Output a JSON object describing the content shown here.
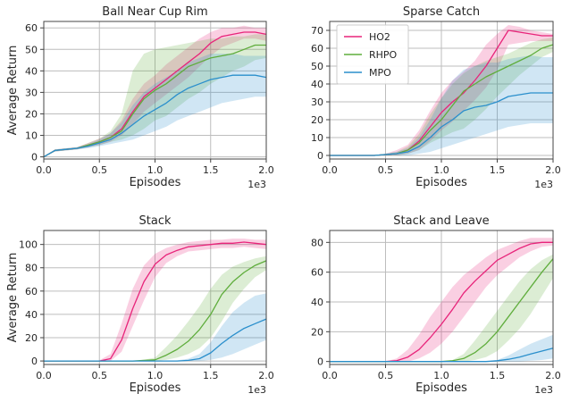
{
  "chart_data": [
    {
      "type": "line",
      "title": "Ball Near Cup Rim",
      "xlabel": "Episodes",
      "ylabel": "Average Return",
      "x_offset_label": "1e3",
      "xlim": [
        0,
        2.0
      ],
      "ylim": [
        -1,
        63
      ],
      "x_ticks": [
        0.0,
        0.5,
        1.0,
        1.5,
        2.0
      ],
      "x_tick_labels": [
        "0.0",
        "0.5",
        "1.0",
        "1.5",
        "2.0"
      ],
      "y_ticks": [
        0,
        10,
        20,
        30,
        40,
        50,
        60
      ],
      "y_tick_labels": [
        "0",
        "10",
        "20",
        "30",
        "40",
        "50",
        "60"
      ],
      "grid": true,
      "x": [
        0,
        0.1,
        0.2,
        0.3,
        0.4,
        0.5,
        0.6,
        0.7,
        0.8,
        0.9,
        1.0,
        1.1,
        1.2,
        1.3,
        1.4,
        1.5,
        1.6,
        1.7,
        1.8,
        1.9,
        2.0
      ],
      "series": [
        {
          "name": "HO2",
          "color": "#e8247a",
          "values": [
            0,
            3,
            3.5,
            4,
            5.5,
            7,
            9,
            13,
            21,
            28,
            32,
            36,
            40,
            44,
            48,
            53,
            56,
            57,
            58,
            58,
            57
          ],
          "upper": [
            0,
            3.5,
            4,
            4.5,
            6.5,
            8.5,
            11,
            17,
            27,
            34,
            38,
            43,
            47,
            51,
            55,
            58,
            60,
            60,
            61,
            60,
            60
          ],
          "lower": [
            0,
            2.5,
            3,
            3.5,
            4.5,
            5.5,
            7,
            10,
            15,
            21,
            25,
            29,
            33,
            37,
            42,
            47,
            51,
            53,
            55,
            55,
            54
          ]
        },
        {
          "name": "RHPO",
          "color": "#5fad3c",
          "values": [
            0,
            3,
            3.5,
            4,
            5.5,
            7,
            9,
            12,
            20,
            27,
            31,
            34,
            38,
            42,
            44,
            46,
            47,
            48,
            50,
            52,
            52
          ],
          "upper": [
            0,
            3.5,
            4,
            4.5,
            6.5,
            8.5,
            12,
            20,
            40,
            48,
            50,
            51,
            52,
            53,
            54,
            55,
            55,
            56,
            56,
            57,
            57
          ],
          "lower": [
            0,
            2.5,
            3,
            3.5,
            4.5,
            5.5,
            7,
            8,
            10,
            13,
            17,
            19,
            23,
            27,
            30,
            34,
            37,
            40,
            42,
            45,
            46
          ]
        },
        {
          "name": "MPO",
          "color": "#2a8fcc",
          "values": [
            0,
            3,
            3.5,
            4,
            5,
            6.5,
            8,
            11,
            15,
            19,
            22,
            25,
            29,
            32,
            34,
            36,
            37,
            38,
            38,
            38,
            37
          ],
          "upper": [
            0,
            3.5,
            4,
            4.5,
            6,
            8,
            11,
            16,
            24,
            30,
            34,
            37,
            40,
            44,
            46,
            48,
            48,
            48,
            47,
            47,
            47
          ],
          "lower": [
            0,
            2.5,
            3,
            3.5,
            4,
            5,
            6,
            7,
            8,
            10,
            12,
            14,
            17,
            19,
            21,
            23,
            25,
            26,
            27,
            28,
            28
          ]
        }
      ]
    },
    {
      "type": "line",
      "title": "Sparse Catch",
      "xlabel": "Episodes",
      "ylabel": "",
      "x_offset_label": "1e3",
      "xlim": [
        0,
        2.0
      ],
      "ylim": [
        -2,
        75
      ],
      "x_ticks": [
        0.0,
        0.5,
        1.0,
        1.5,
        2.0
      ],
      "x_tick_labels": [
        "0.0",
        "0.5",
        "1.0",
        "1.5",
        "2.0"
      ],
      "y_ticks": [
        0,
        10,
        20,
        30,
        40,
        50,
        60,
        70
      ],
      "y_tick_labels": [
        "0",
        "10",
        "20",
        "30",
        "40",
        "50",
        "60",
        "70"
      ],
      "grid": true,
      "legend": {
        "placement": "top-left",
        "entries": [
          "HO2",
          "RHPO",
          "MPO"
        ]
      },
      "x": [
        0,
        0.1,
        0.2,
        0.3,
        0.4,
        0.5,
        0.6,
        0.7,
        0.8,
        0.9,
        1.0,
        1.1,
        1.2,
        1.3,
        1.4,
        1.5,
        1.6,
        1.7,
        1.8,
        1.9,
        2.0
      ],
      "series": [
        {
          "name": "HO2",
          "color": "#e8247a",
          "values": [
            0,
            0,
            0,
            0,
            0,
            0.5,
            1,
            3,
            8,
            16,
            24,
            30,
            35,
            42,
            50,
            60,
            70,
            69,
            68,
            67,
            67
          ],
          "upper": [
            0,
            0,
            0,
            0,
            0,
            1,
            3,
            6,
            14,
            25,
            35,
            42,
            47,
            53,
            62,
            68,
            73,
            72,
            70,
            69,
            68
          ],
          "lower": [
            0,
            0,
            0,
            0,
            0,
            0,
            0,
            1,
            3,
            8,
            14,
            19,
            25,
            31,
            38,
            48,
            62,
            63,
            64,
            64,
            64
          ]
        },
        {
          "name": "RHPO",
          "color": "#5fad3c",
          "values": [
            0,
            0,
            0,
            0,
            0,
            0.5,
            1,
            3,
            7,
            14,
            20,
            28,
            36,
            40,
            44,
            47,
            50,
            53,
            56,
            60,
            62
          ],
          "upper": [
            0,
            0,
            0,
            0,
            0,
            1,
            2,
            5,
            12,
            23,
            32,
            40,
            46,
            50,
            53,
            55,
            57,
            60,
            63,
            65,
            66
          ],
          "lower": [
            0,
            0,
            0,
            0,
            0,
            0,
            0,
            1,
            3,
            7,
            10,
            13,
            15,
            20,
            26,
            33,
            39,
            45,
            50,
            55,
            58
          ]
        },
        {
          "name": "MPO",
          "color": "#2a8fcc",
          "values": [
            0,
            0,
            0,
            0,
            0,
            0.5,
            1,
            2,
            5,
            10,
            16,
            20,
            25,
            27,
            28,
            30,
            33,
            34,
            35,
            35,
            35
          ],
          "upper": [
            0,
            0,
            0,
            0,
            0,
            1,
            2,
            4,
            10,
            20,
            32,
            42,
            48,
            50,
            52,
            52,
            54,
            55,
            56,
            55,
            55
          ],
          "lower": [
            0,
            0,
            0,
            0,
            0,
            0,
            0,
            0,
            1,
            2,
            4,
            6,
            8,
            10,
            12,
            14,
            16,
            17,
            18,
            18,
            18
          ]
        }
      ]
    },
    {
      "type": "line",
      "title": "Stack",
      "xlabel": "Episodes",
      "ylabel": "Average Return",
      "x_offset_label": "1e3",
      "xlim": [
        0,
        2.0
      ],
      "ylim": [
        -3,
        112
      ],
      "x_ticks": [
        0.0,
        0.5,
        1.0,
        1.5,
        2.0
      ],
      "x_tick_labels": [
        "0.0",
        "0.5",
        "1.0",
        "1.5",
        "2.0"
      ],
      "y_ticks": [
        0,
        20,
        40,
        60,
        80,
        100
      ],
      "y_tick_labels": [
        "0",
        "20",
        "40",
        "60",
        "80",
        "100"
      ],
      "grid": true,
      "x": [
        0,
        0.1,
        0.2,
        0.3,
        0.4,
        0.5,
        0.6,
        0.7,
        0.8,
        0.9,
        1.0,
        1.1,
        1.2,
        1.3,
        1.4,
        1.5,
        1.6,
        1.7,
        1.8,
        1.9,
        2.0
      ],
      "series": [
        {
          "name": "HO2",
          "color": "#e8247a",
          "values": [
            0,
            0,
            0,
            0,
            0,
            0,
            2,
            18,
            45,
            68,
            83,
            91,
            95,
            98,
            99,
            100,
            101,
            101,
            102,
            101,
            100
          ],
          "upper": [
            0,
            0,
            0,
            0,
            0,
            0.5,
            6,
            32,
            62,
            82,
            92,
            97,
            100,
            102,
            103,
            104,
            104,
            105,
            105,
            104,
            104
          ],
          "lower": [
            0,
            0,
            0,
            0,
            0,
            0,
            0,
            8,
            30,
            52,
            72,
            84,
            90,
            94,
            95,
            96,
            97,
            97,
            98,
            97,
            96
          ]
        },
        {
          "name": "RHPO",
          "color": "#5fad3c",
          "values": [
            0,
            0,
            0,
            0,
            0,
            0,
            0,
            0,
            0,
            0.5,
            1,
            5,
            10,
            17,
            27,
            40,
            57,
            68,
            76,
            82,
            86
          ],
          "upper": [
            0,
            0,
            0,
            0,
            0,
            0,
            0,
            0,
            0,
            1,
            3,
            12,
            22,
            34,
            47,
            62,
            74,
            81,
            85,
            88,
            90
          ],
          "lower": [
            0,
            0,
            0,
            0,
            0,
            0,
            0,
            0,
            0,
            0,
            0,
            1,
            3,
            6,
            11,
            20,
            34,
            50,
            62,
            72,
            78
          ]
        },
        {
          "name": "MPO",
          "color": "#2a8fcc",
          "values": [
            0,
            0,
            0,
            0,
            0,
            0,
            0,
            0,
            0,
            0,
            0,
            0,
            0,
            0.5,
            2,
            7,
            15,
            22,
            28,
            32,
            36
          ],
          "upper": [
            0,
            0,
            0,
            0,
            0,
            0,
            0,
            0,
            0,
            0,
            0,
            0,
            0.5,
            2,
            6,
            16,
            30,
            42,
            50,
            56,
            58
          ],
          "lower": [
            0,
            0,
            0,
            0,
            0,
            0,
            0,
            0,
            0,
            0,
            0,
            0,
            0,
            0,
            0,
            1,
            3,
            6,
            10,
            14,
            18
          ]
        }
      ]
    },
    {
      "type": "line",
      "title": "Stack and Leave",
      "xlabel": "Episodes",
      "ylabel": "",
      "x_offset_label": "1e3",
      "xlim": [
        0,
        2.0
      ],
      "ylim": [
        -2,
        88
      ],
      "x_ticks": [
        0.0,
        0.5,
        1.0,
        1.5,
        2.0
      ],
      "x_tick_labels": [
        "0.0",
        "0.5",
        "1.0",
        "1.5",
        "2.0"
      ],
      "y_ticks": [
        0,
        20,
        40,
        60,
        80
      ],
      "y_tick_labels": [
        "0",
        "20",
        "40",
        "60",
        "80"
      ],
      "grid": true,
      "x": [
        0,
        0.1,
        0.2,
        0.3,
        0.4,
        0.5,
        0.6,
        0.7,
        0.8,
        0.9,
        1.0,
        1.1,
        1.2,
        1.3,
        1.4,
        1.5,
        1.6,
        1.7,
        1.8,
        1.9,
        2.0
      ],
      "series": [
        {
          "name": "HO2",
          "color": "#e8247a",
          "values": [
            0,
            0,
            0,
            0,
            0,
            0,
            0.5,
            3,
            8,
            16,
            25,
            35,
            46,
            54,
            61,
            68,
            72,
            76,
            79,
            80,
            80
          ],
          "upper": [
            0,
            0,
            0,
            0,
            0,
            0,
            2,
            8,
            18,
            30,
            40,
            50,
            58,
            64,
            70,
            75,
            78,
            81,
            83,
            83,
            83
          ],
          "lower": [
            0,
            0,
            0,
            0,
            0,
            0,
            0,
            0,
            2,
            6,
            12,
            20,
            30,
            40,
            50,
            58,
            64,
            70,
            74,
            77,
            78
          ]
        },
        {
          "name": "RHPO",
          "color": "#5fad3c",
          "values": [
            0,
            0,
            0,
            0,
            0,
            0,
            0,
            0,
            0,
            0,
            0,
            0.5,
            2,
            6,
            12,
            20,
            30,
            40,
            50,
            60,
            69
          ],
          "upper": [
            0,
            0,
            0,
            0,
            0,
            0,
            0,
            0,
            0,
            0,
            0,
            1,
            5,
            14,
            24,
            34,
            44,
            54,
            62,
            68,
            72
          ],
          "lower": [
            0,
            0,
            0,
            0,
            0,
            0,
            0,
            0,
            0,
            0,
            0,
            0,
            0,
            1,
            3,
            7,
            14,
            22,
            32,
            44,
            56
          ]
        },
        {
          "name": "MPO",
          "color": "#2a8fcc",
          "values": [
            0,
            0,
            0,
            0,
            0,
            0,
            0,
            0,
            0,
            0,
            0,
            0,
            0,
            0,
            0,
            0.5,
            1.5,
            3,
            5,
            7,
            9
          ],
          "upper": [
            0,
            0,
            0,
            0,
            0,
            0,
            0,
            0,
            0,
            0,
            0,
            0,
            0,
            0,
            0,
            1,
            4,
            8,
            12,
            15,
            18
          ],
          "lower": [
            0,
            0,
            0,
            0,
            0,
            0,
            0,
            0,
            0,
            0,
            0,
            0,
            0,
            0,
            0,
            0,
            0,
            0,
            0.5,
            1,
            2
          ]
        }
      ]
    }
  ]
}
